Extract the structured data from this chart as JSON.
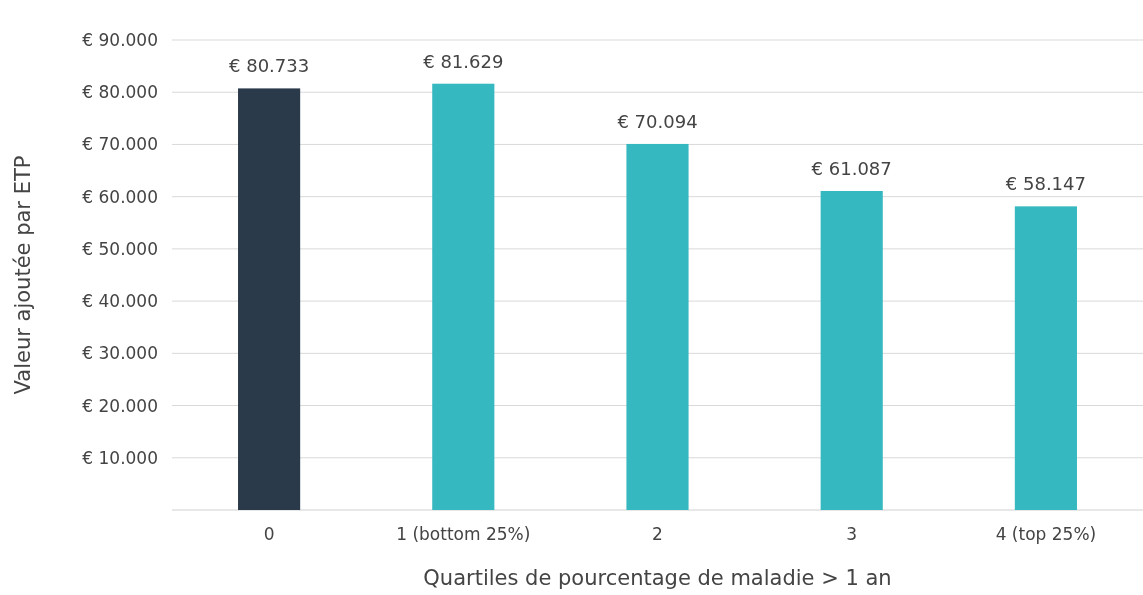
{
  "chart_data": {
    "type": "bar",
    "xlabel": "Quartiles de pourcentage de maladie > 1 an",
    "ylabel": "Valeur ajoutée par ETP",
    "categories": [
      "0",
      "1 (bottom 25%)",
      "2",
      "3",
      "4 (top 25%)"
    ],
    "values": [
      80733,
      81629,
      70094,
      61087,
      58147
    ],
    "colors": [
      "#2b3a4a",
      "#36b8c0",
      "#36b8c0",
      "#36b8c0",
      "#36b8c0"
    ],
    "value_labels": [
      "€ 80.733",
      "€ 81.629",
      "€ 70.094",
      "€ 61.087",
      "€ 58.147"
    ],
    "ylim": [
      0,
      90000
    ],
    "yticks": [
      {
        "value": 10000,
        "label": "€ 10.000"
      },
      {
        "value": 20000,
        "label": "€ 20.000"
      },
      {
        "value": 30000,
        "label": "€ 30.000"
      },
      {
        "value": 40000,
        "label": "€ 40.000"
      },
      {
        "value": 50000,
        "label": "€ 50.000"
      },
      {
        "value": 60000,
        "label": "€ 60.000"
      },
      {
        "value": 70000,
        "label": "€ 70.000"
      },
      {
        "value": 80000,
        "label": "€ 80.000"
      },
      {
        "value": 90000,
        "label": "€ 90.000"
      }
    ],
    "grid": "y"
  }
}
